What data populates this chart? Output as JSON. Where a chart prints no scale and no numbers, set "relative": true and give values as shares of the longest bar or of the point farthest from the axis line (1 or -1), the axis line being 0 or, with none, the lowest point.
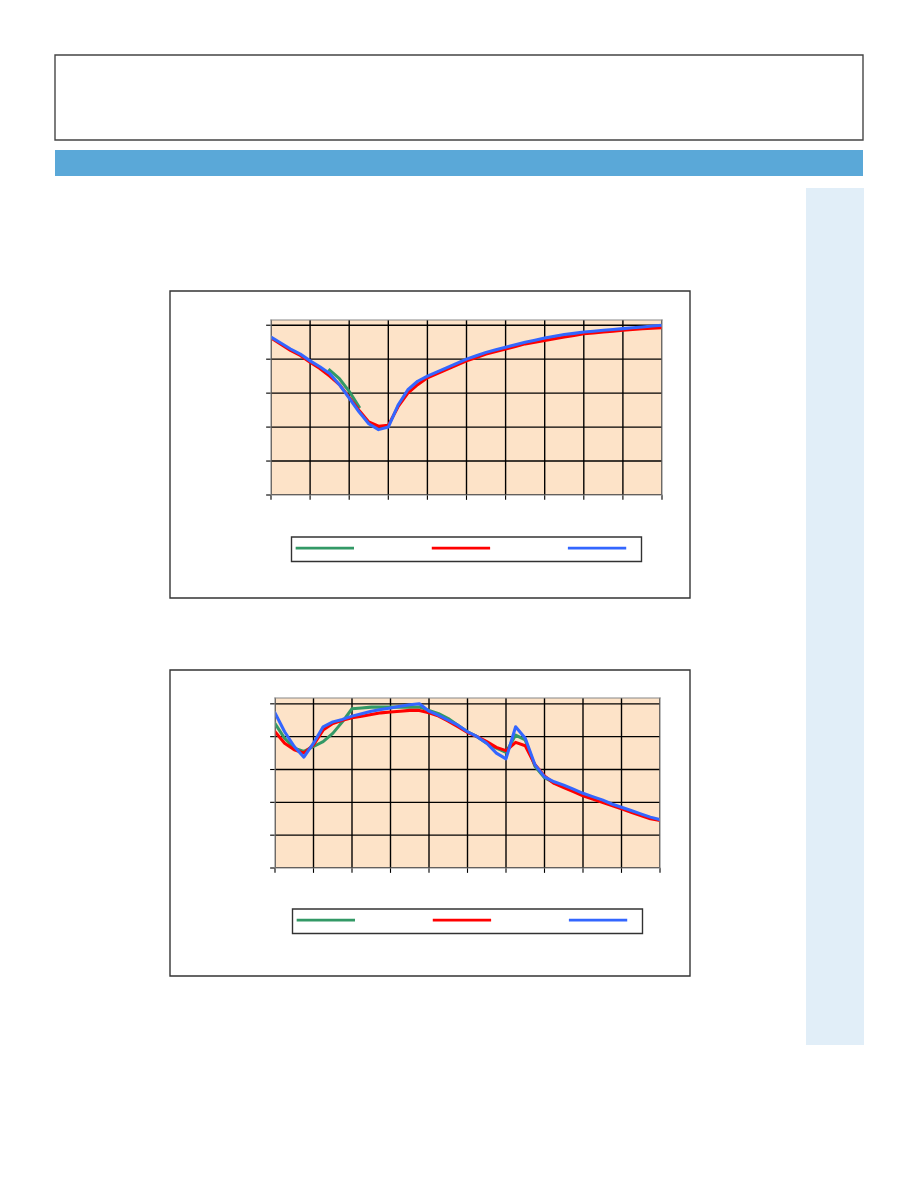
{
  "chart_data": [
    {
      "type": "line",
      "relative": true,
      "grid": true,
      "marker": "none",
      "line_style": "solid",
      "categories": [
        null,
        null,
        null,
        null,
        null,
        null,
        null,
        null,
        null,
        null,
        null,
        null,
        null,
        null,
        null,
        null,
        null,
        null,
        null,
        null,
        null,
        null,
        null,
        null,
        null,
        null,
        null,
        null,
        null,
        null,
        null,
        null,
        null,
        null,
        null,
        null,
        null,
        null,
        null,
        null,
        null
      ],
      "series": [
        {
          "color": "#339966",
          "values": [
            null,
            null,
            null,
            null,
            null,
            null,
            0.735,
            0.685,
            0.61,
            0.52,
            null,
            null,
            null,
            null,
            null,
            null,
            null,
            null,
            null,
            null,
            null,
            null,
            null,
            null,
            null,
            null,
            null,
            null,
            null,
            null,
            null,
            null,
            null,
            null,
            null,
            null,
            null,
            null,
            null,
            null,
            null
          ]
        },
        {
          "color": "#ff0000",
          "values": [
            0.925,
            0.888,
            0.852,
            0.822,
            0.782,
            0.745,
            0.7,
            0.65,
            0.575,
            0.5,
            0.43,
            0.405,
            0.41,
            0.52,
            0.6,
            0.65,
            0.69,
            0.715,
            0.74,
            0.765,
            0.79,
            0.81,
            0.83,
            0.845,
            0.86,
            0.875,
            0.89,
            0.9,
            0.91,
            0.92,
            0.93,
            0.94,
            0.95,
            0.955,
            0.96,
            0.965,
            0.97,
            0.975,
            0.98,
            0.983,
            0.985
          ]
        },
        {
          "color": "#3366ff",
          "values": [
            0.93,
            0.895,
            0.86,
            0.83,
            0.79,
            0.755,
            0.715,
            0.65,
            0.57,
            0.49,
            0.42,
            0.385,
            0.4,
            0.53,
            0.62,
            0.67,
            0.7,
            0.725,
            0.75,
            0.775,
            0.8,
            0.82,
            0.84,
            0.855,
            0.87,
            0.885,
            0.9,
            0.912,
            0.925,
            0.935,
            0.945,
            0.952,
            0.96,
            0.965,
            0.97,
            0.975,
            0.98,
            0.985,
            0.99,
            0.995,
            1.0
          ]
        }
      ]
    },
    {
      "type": "line",
      "relative": true,
      "grid": true,
      "marker": "none",
      "line_style": "solid",
      "categories": [
        null,
        null,
        null,
        null,
        null,
        null,
        null,
        null,
        null,
        null,
        null,
        null,
        null,
        null,
        null,
        null,
        null,
        null,
        null,
        null,
        null,
        null,
        null,
        null,
        null,
        null,
        null,
        null,
        null,
        null,
        null,
        null,
        null,
        null,
        null,
        null,
        null,
        null,
        null,
        null,
        null
      ],
      "series": [
        {
          "color": "#339966",
          "values": [
            0.88,
            0.79,
            0.73,
            0.71,
            0.74,
            0.77,
            0.82,
            0.89,
            0.97,
            0.975,
            0.98,
            0.98,
            0.98,
            0.98,
            0.98,
            0.98,
            0.96,
            0.94,
            0.91,
            0.87,
            0.83,
            0.8,
            0.76,
            0.73,
            0.705,
            0.81,
            0.78,
            0.62,
            0.55,
            0.52,
            null,
            null,
            null,
            null,
            null,
            null,
            null,
            null,
            null,
            null,
            null
          ]
        },
        {
          "color": "#ff0000",
          "values": [
            0.83,
            0.76,
            0.72,
            0.7,
            0.75,
            0.84,
            0.88,
            0.9,
            0.915,
            0.925,
            0.935,
            0.945,
            0.95,
            0.955,
            0.96,
            0.96,
            0.945,
            0.925,
            0.895,
            0.86,
            0.825,
            0.8,
            0.77,
            0.735,
            0.715,
            0.765,
            0.745,
            0.63,
            0.56,
            0.515,
            0.49,
            0.465,
            0.44,
            0.42,
            0.4,
            0.38,
            0.36,
            0.34,
            0.32,
            0.3,
            0.29
          ]
        },
        {
          "color": "#3366ff",
          "values": [
            0.944,
            0.83,
            0.74,
            0.675,
            0.76,
            0.86,
            0.89,
            0.905,
            0.925,
            0.94,
            0.955,
            0.965,
            0.975,
            0.985,
            0.995,
            1.0,
            0.955,
            0.93,
            0.9,
            0.87,
            0.83,
            0.8,
            0.76,
            0.7,
            0.665,
            0.86,
            0.79,
            0.63,
            0.555,
            0.525,
            0.505,
            0.48,
            0.455,
            0.435,
            0.415,
            0.39,
            0.37,
            0.35,
            0.33,
            0.31,
            0.295
          ]
        }
      ]
    }
  ]
}
